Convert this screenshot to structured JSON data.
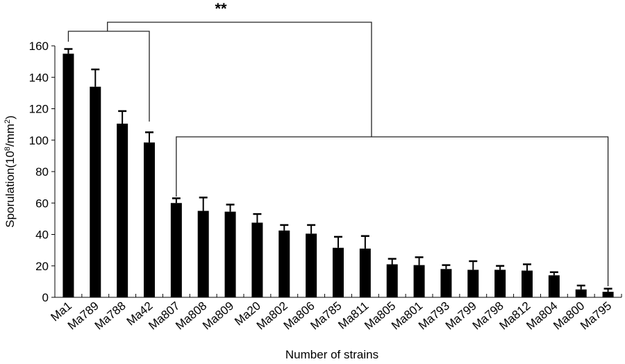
{
  "chart_data": {
    "type": "bar",
    "title": "",
    "xlabel": "Number of strains",
    "ylabel": "Sporulation(10⁸/mm²)",
    "ylabel_parts": {
      "base": "Sporulation(10",
      "sup1": "8",
      "mid": "/mm",
      "sup2": "2",
      "end": ")"
    },
    "ylim": [
      0,
      160
    ],
    "yticks": [
      0,
      20,
      40,
      60,
      80,
      100,
      120,
      140,
      160
    ],
    "grid": false,
    "legend": null,
    "categories": [
      "Ma1",
      "Ma789",
      "Ma788",
      "Ma42",
      "Ma807",
      "Ma808",
      "Ma809",
      "Ma20",
      "Ma802",
      "Ma806",
      "Ma785",
      "Ma811",
      "Ma805",
      "Ma801",
      "Ma793",
      "Ma799",
      "Ma798",
      "Ma812",
      "Ma804",
      "Ma800",
      "Ma795"
    ],
    "series": [
      {
        "name": "Sporulation",
        "color": "#000000",
        "values": [
          155,
          134,
          110.5,
          98.5,
          60,
          55,
          54.5,
          47.5,
          42.5,
          40.5,
          31.5,
          31,
          21,
          20.5,
          18,
          17.5,
          17.5,
          17,
          14,
          5,
          3.5
        ],
        "error": [
          3,
          11,
          8,
          6.5,
          3,
          8.5,
          4.5,
          5.5,
          3.5,
          5.5,
          7,
          8,
          3.5,
          5,
          2.5,
          5.5,
          2.5,
          4,
          2,
          2.5,
          2
        ]
      }
    ],
    "annotations": [
      {
        "type": "significance-bracket",
        "label": "**",
        "description": "Group Ma1–Ma42 vs group Ma807–Ma795"
      },
      {
        "type": "group-bracket",
        "from": "Ma1",
        "to": "Ma42"
      },
      {
        "type": "group-bracket",
        "from": "Ma807",
        "to": "Ma795"
      }
    ]
  }
}
